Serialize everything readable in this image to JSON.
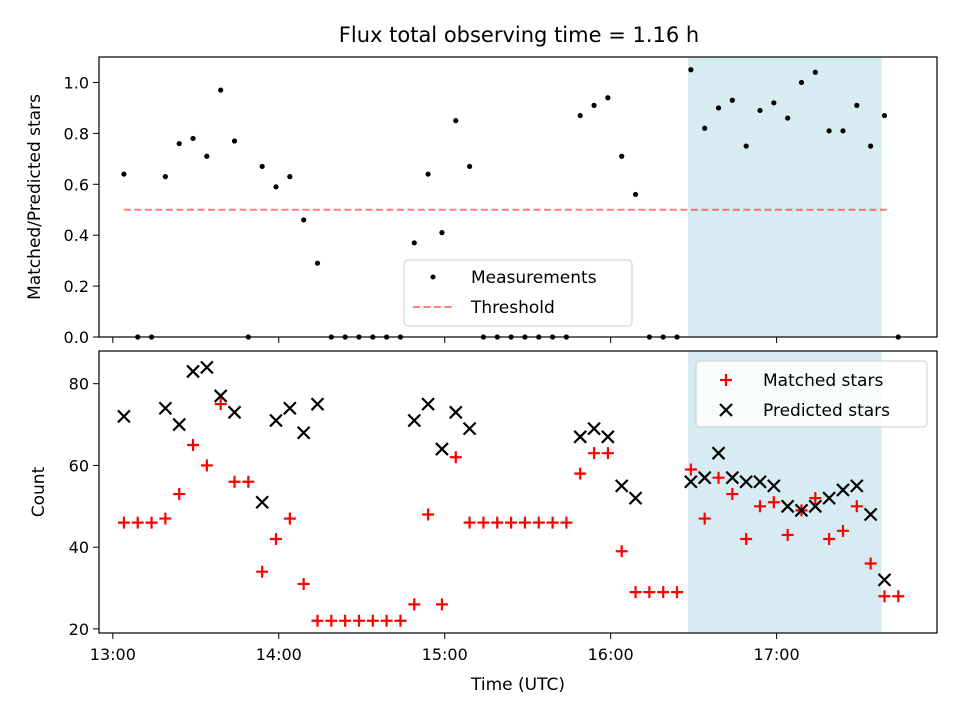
{
  "figure": {
    "title": "Flux total observing time = 1.16 h"
  },
  "colors": {
    "band": "#add8e6",
    "threshold": "#ff0000",
    "matched": "#ff0000",
    "predicted": "#000000",
    "measure": "#000000"
  },
  "chart_data": [
    {
      "type": "scatter",
      "ylabel": "Matched/Predicted stars",
      "xlim": [
        "12:55",
        "17:58"
      ],
      "ylim": [
        0,
        1.1
      ],
      "yticks": [
        "0.0",
        "0.2",
        "0.4",
        "0.6",
        "0.8",
        "1.0"
      ],
      "shaded_range": [
        "16:28",
        "17:38"
      ],
      "legend": {
        "placement": "lower center",
        "entries": [
          "Measurements",
          "Threshold"
        ]
      },
      "threshold": {
        "name": "Threshold",
        "value": 0.5,
        "x_range": [
          "13:04",
          "17:41"
        ]
      },
      "series": [
        {
          "name": "Measurements",
          "points": [
            [
              "13:04",
              0.64
            ],
            [
              "13:09",
              0.0
            ],
            [
              "13:14",
              0.0
            ],
            [
              "13:19",
              0.63
            ],
            [
              "13:24",
              0.76
            ],
            [
              "13:29",
              0.78
            ],
            [
              "13:34",
              0.71
            ],
            [
              "13:39",
              0.97
            ],
            [
              "13:44",
              0.77
            ],
            [
              "13:49",
              0.0
            ],
            [
              "13:54",
              0.67
            ],
            [
              "13:59",
              0.59
            ],
            [
              "14:04",
              0.63
            ],
            [
              "14:09",
              0.46
            ],
            [
              "14:14",
              0.29
            ],
            [
              "14:19",
              0.0
            ],
            [
              "14:24",
              0.0
            ],
            [
              "14:29",
              0.0
            ],
            [
              "14:34",
              0.0
            ],
            [
              "14:39",
              0.0
            ],
            [
              "14:44",
              0.0
            ],
            [
              "14:49",
              0.37
            ],
            [
              "14:54",
              0.64
            ],
            [
              "14:59",
              0.41
            ],
            [
              "15:04",
              0.85
            ],
            [
              "15:09",
              0.67
            ],
            [
              "15:14",
              0.0
            ],
            [
              "15:19",
              0.0
            ],
            [
              "15:24",
              0.0
            ],
            [
              "15:29",
              0.0
            ],
            [
              "15:34",
              0.0
            ],
            [
              "15:39",
              0.0
            ],
            [
              "15:44",
              0.0
            ],
            [
              "15:49",
              0.87
            ],
            [
              "15:54",
              0.91
            ],
            [
              "15:59",
              0.94
            ],
            [
              "16:04",
              0.71
            ],
            [
              "16:09",
              0.56
            ],
            [
              "16:14",
              0.0
            ],
            [
              "16:19",
              0.0
            ],
            [
              "16:24",
              0.0
            ],
            [
              "16:29",
              1.05
            ],
            [
              "16:34",
              0.82
            ],
            [
              "16:39",
              0.9
            ],
            [
              "16:44",
              0.93
            ],
            [
              "16:49",
              0.75
            ],
            [
              "16:54",
              0.89
            ],
            [
              "16:59",
              0.92
            ],
            [
              "17:04",
              0.86
            ],
            [
              "17:09",
              1.0
            ],
            [
              "17:14",
              1.04
            ],
            [
              "17:19",
              0.81
            ],
            [
              "17:24",
              0.81
            ],
            [
              "17:29",
              0.91
            ],
            [
              "17:34",
              0.75
            ],
            [
              "17:39",
              0.87
            ],
            [
              "17:44",
              0.0
            ]
          ]
        }
      ]
    },
    {
      "type": "scatter",
      "ylabel": "Count",
      "xlabel": "Time (UTC)",
      "xlim": [
        "12:55",
        "17:58"
      ],
      "ylim": [
        19,
        88
      ],
      "yticks": [
        "20",
        "40",
        "60",
        "80"
      ],
      "xticks": [
        "13:00",
        "14:00",
        "15:00",
        "16:00",
        "17:00"
      ],
      "shaded_range": [
        "16:28",
        "17:38"
      ],
      "legend": {
        "placement": "upper right",
        "entries": [
          "Matched stars",
          "Predicted stars"
        ]
      },
      "series": [
        {
          "name": "Matched stars",
          "points": [
            [
              "13:04",
              46
            ],
            [
              "13:09",
              46
            ],
            [
              "13:14",
              46
            ],
            [
              "13:19",
              47
            ],
            [
              "13:24",
              53
            ],
            [
              "13:29",
              65
            ],
            [
              "13:34",
              60
            ],
            [
              "13:39",
              75
            ],
            [
              "13:44",
              56
            ],
            [
              "13:49",
              56
            ],
            [
              "13:54",
              34
            ],
            [
              "13:59",
              42
            ],
            [
              "14:04",
              47
            ],
            [
              "14:09",
              31
            ],
            [
              "14:14",
              22
            ],
            [
              "14:19",
              22
            ],
            [
              "14:24",
              22
            ],
            [
              "14:29",
              22
            ],
            [
              "14:34",
              22
            ],
            [
              "14:39",
              22
            ],
            [
              "14:44",
              22
            ],
            [
              "14:49",
              26
            ],
            [
              "14:54",
              48
            ],
            [
              "14:59",
              26
            ],
            [
              "15:04",
              62
            ],
            [
              "15:09",
              46
            ],
            [
              "15:14",
              46
            ],
            [
              "15:19",
              46
            ],
            [
              "15:24",
              46
            ],
            [
              "15:29",
              46
            ],
            [
              "15:34",
              46
            ],
            [
              "15:39",
              46
            ],
            [
              "15:44",
              46
            ],
            [
              "15:49",
              58
            ],
            [
              "15:54",
              63
            ],
            [
              "15:59",
              63
            ],
            [
              "16:04",
              39
            ],
            [
              "16:09",
              29
            ],
            [
              "16:14",
              29
            ],
            [
              "16:19",
              29
            ],
            [
              "16:24",
              29
            ],
            [
              "16:29",
              59
            ],
            [
              "16:34",
              47
            ],
            [
              "16:39",
              57
            ],
            [
              "16:44",
              53
            ],
            [
              "16:49",
              42
            ],
            [
              "16:54",
              50
            ],
            [
              "16:59",
              51
            ],
            [
              "17:04",
              43
            ],
            [
              "17:09",
              49
            ],
            [
              "17:14",
              52
            ],
            [
              "17:19",
              42
            ],
            [
              "17:24",
              44
            ],
            [
              "17:29",
              50
            ],
            [
              "17:34",
              36
            ],
            [
              "17:39",
              28
            ],
            [
              "17:44",
              28
            ]
          ]
        },
        {
          "name": "Predicted stars",
          "points": [
            [
              "13:04",
              72
            ],
            [
              "13:19",
              74
            ],
            [
              "13:24",
              70
            ],
            [
              "13:29",
              83
            ],
            [
              "13:34",
              84
            ],
            [
              "13:39",
              77
            ],
            [
              "13:44",
              73
            ],
            [
              "13:54",
              51
            ],
            [
              "13:59",
              71
            ],
            [
              "14:04",
              74
            ],
            [
              "14:09",
              68
            ],
            [
              "14:14",
              75
            ],
            [
              "14:49",
              71
            ],
            [
              "14:54",
              75
            ],
            [
              "14:59",
              64
            ],
            [
              "15:04",
              73
            ],
            [
              "15:09",
              69
            ],
            [
              "15:49",
              67
            ],
            [
              "15:54",
              69
            ],
            [
              "15:59",
              67
            ],
            [
              "16:04",
              55
            ],
            [
              "16:09",
              52
            ],
            [
              "16:29",
              56
            ],
            [
              "16:34",
              57
            ],
            [
              "16:39",
              63
            ],
            [
              "16:44",
              57
            ],
            [
              "16:49",
              56
            ],
            [
              "16:54",
              56
            ],
            [
              "16:59",
              55
            ],
            [
              "17:04",
              50
            ],
            [
              "17:09",
              49
            ],
            [
              "17:14",
              50
            ],
            [
              "17:19",
              52
            ],
            [
              "17:24",
              54
            ],
            [
              "17:29",
              55
            ],
            [
              "17:34",
              48
            ],
            [
              "17:39",
              32
            ]
          ]
        }
      ]
    }
  ]
}
